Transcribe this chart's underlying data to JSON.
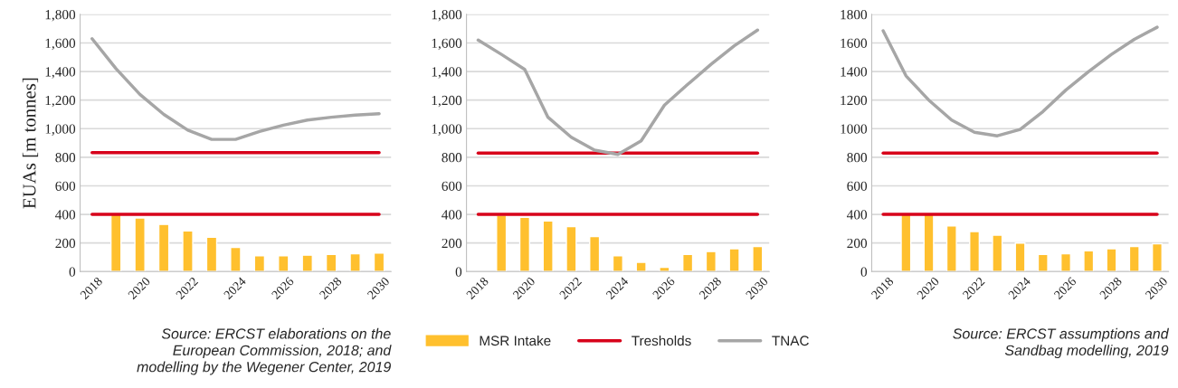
{
  "chart_data": [
    {
      "type": "bar",
      "ylabel": "EUAs [m tonnes]",
      "categories": [
        "2018",
        null,
        "2020",
        null,
        "2022",
        null,
        "2024",
        null,
        "2026",
        null,
        "2028",
        null,
        "2030"
      ],
      "ylim": [
        0,
        1800
      ],
      "yticks": [
        0,
        200,
        400,
        600,
        800,
        {
          "value": 1000,
          "label": "1,000"
        },
        {
          "value": 1200,
          "label": "1,200"
        },
        {
          "value": 1400,
          "label": "1,400"
        },
        {
          "value": 1600,
          "label": "1,600"
        },
        {
          "value": 1800,
          "label": "1,800"
        }
      ],
      "grid": "y",
      "series": [
        {
          "color": "#ffc02e",
          "values": [
            null,
            400,
            375,
            330,
            285,
            240,
            170,
            110,
            110,
            115,
            120,
            125,
            130
          ]
        },
        {
          "type": "line",
          "color": "#d7001a",
          "values": [
            833,
            833,
            833,
            833,
            833,
            833,
            833,
            833,
            833,
            833,
            833,
            833,
            833
          ]
        },
        {
          "type": "line",
          "color": "#d7001a",
          "values": [
            400,
            400,
            400,
            400,
            400,
            400,
            400,
            400,
            400,
            400,
            400,
            400,
            400
          ]
        },
        {
          "type": "line",
          "color": "#a6a6a6",
          "values": [
            1630,
            1420,
            1240,
            1100,
            990,
            925,
            925,
            980,
            1025,
            1060,
            1080,
            1095,
            1105
          ]
        }
      ],
      "annotations": [
        "Source: ERCST elaborations on the\nEuropean Commission, 2018; and\nmodelling by the Wegener Center, 2019"
      ]
    },
    {
      "type": "bar",
      "categories": [
        "2018",
        null,
        "2020",
        null,
        "2022",
        null,
        "2024",
        null,
        "2026",
        null,
        "2028",
        null,
        "2030"
      ],
      "ylim": [
        0,
        1800
      ],
      "yticks": [
        0,
        200,
        400,
        600,
        800,
        {
          "value": 1000,
          "label": "1,000"
        },
        {
          "value": 1200,
          "label": "1,200"
        },
        {
          "value": 1400,
          "label": "1,400"
        },
        {
          "value": 1600,
          "label": "1,600"
        },
        {
          "value": 1800,
          "label": "1,800"
        }
      ],
      "grid": "y",
      "legend": "bottom",
      "series": [
        {
          "name": "MSR Intake",
          "color": "#ffc02e",
          "values": [
            null,
            395,
            380,
            355,
            315,
            245,
            110,
            65,
            30,
            120,
            140,
            160,
            175
          ]
        },
        {
          "type": "line",
          "name": "Tresholds",
          "color": "#d7001a",
          "values": [
            830,
            830,
            830,
            830,
            830,
            830,
            830,
            830,
            830,
            830,
            830,
            830,
            830
          ]
        },
        {
          "type": "line",
          "color": "#d7001a",
          "values": [
            400,
            400,
            400,
            400,
            400,
            400,
            400,
            400,
            400,
            400,
            400,
            400,
            400
          ]
        },
        {
          "type": "line",
          "name": "TNAC",
          "color": "#a6a6a6",
          "values": [
            1620,
            1520,
            1415,
            1080,
            940,
            850,
            820,
            915,
            1165,
            1310,
            1450,
            1580,
            1690
          ]
        }
      ]
    },
    {
      "type": "bar",
      "categories": [
        "2018",
        null,
        "2020",
        null,
        "2022",
        null,
        "2024",
        null,
        "2026",
        null,
        "2028",
        null,
        "2030"
      ],
      "ylim": [
        0,
        1800
      ],
      "yticks": [
        0,
        200,
        400,
        600,
        800,
        1000,
        1200,
        1400,
        1600,
        1800
      ],
      "grid": "y",
      "series": [
        {
          "color": "#ffc02e",
          "values": [
            null,
            400,
            400,
            320,
            280,
            255,
            200,
            120,
            125,
            145,
            160,
            175,
            195
          ]
        },
        {
          "type": "line",
          "color": "#d7001a",
          "values": [
            830,
            830,
            830,
            830,
            830,
            830,
            830,
            830,
            830,
            830,
            830,
            830,
            830
          ]
        },
        {
          "type": "line",
          "color": "#d7001a",
          "values": [
            400,
            400,
            400,
            400,
            400,
            400,
            400,
            400,
            400,
            400,
            400,
            400,
            400
          ]
        },
        {
          "type": "line",
          "color": "#a6a6a6",
          "values": [
            1685,
            1370,
            1200,
            1060,
            975,
            950,
            995,
            1120,
            1270,
            1400,
            1520,
            1625,
            1710
          ]
        }
      ],
      "annotations": [
        "Source: ERCST assumptions and\nSandbag modelling, 2019"
      ]
    }
  ]
}
